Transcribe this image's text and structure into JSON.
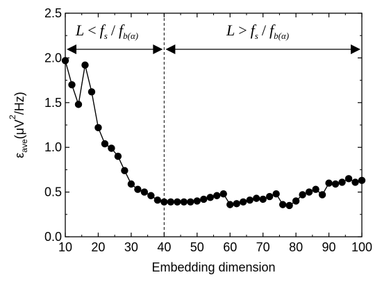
{
  "chart_data": {
    "type": "line",
    "xlabel": "Embedding dimension",
    "ylabel_main": "ε",
    "ylabel_sub": "ave",
    "ylabel_units": "(μV",
    "ylabel_sup": "2",
    "ylabel_tail": "/Hz)",
    "xlim": [
      10,
      100
    ],
    "ylim": [
      0.0,
      2.5
    ],
    "xticks": [
      "10",
      "20",
      "30",
      "40",
      "50",
      "60",
      "70",
      "80",
      "90",
      "100"
    ],
    "yticks": [
      "0.0",
      "0.5",
      "1.0",
      "1.5",
      "2.0",
      "2.5"
    ],
    "divider_x": 40,
    "annotations": {
      "left": {
        "L": "L",
        "op": "<",
        "f": "f",
        "s": "s",
        "slash": "/",
        "fb": "f",
        "sub": "b(α)"
      },
      "right": {
        "L": "L",
        "op": ">",
        "f": "f",
        "s": "s",
        "slash": "/",
        "fb": "f",
        "sub": "b(α)"
      }
    },
    "series": [
      {
        "x": [
          10,
          12,
          14,
          16,
          18,
          20,
          22,
          24,
          26,
          28,
          30,
          32,
          34,
          36,
          38,
          40,
          42,
          44,
          46,
          48,
          50,
          52,
          54,
          56,
          58,
          60,
          62,
          64,
          66,
          68,
          70,
          72,
          74,
          76,
          78,
          80,
          82,
          84,
          86,
          88,
          90,
          92,
          94,
          96,
          98,
          100
        ],
        "y": [
          1.97,
          1.7,
          1.48,
          1.92,
          1.62,
          1.22,
          1.04,
          0.99,
          0.9,
          0.74,
          0.59,
          0.53,
          0.5,
          0.46,
          0.41,
          0.39,
          0.39,
          0.39,
          0.39,
          0.39,
          0.4,
          0.42,
          0.44,
          0.46,
          0.48,
          0.36,
          0.37,
          0.39,
          0.41,
          0.43,
          0.42,
          0.45,
          0.48,
          0.36,
          0.35,
          0.4,
          0.47,
          0.5,
          0.53,
          0.47,
          0.6,
          0.59,
          0.61,
          0.65,
          0.61,
          0.63
        ]
      }
    ]
  }
}
